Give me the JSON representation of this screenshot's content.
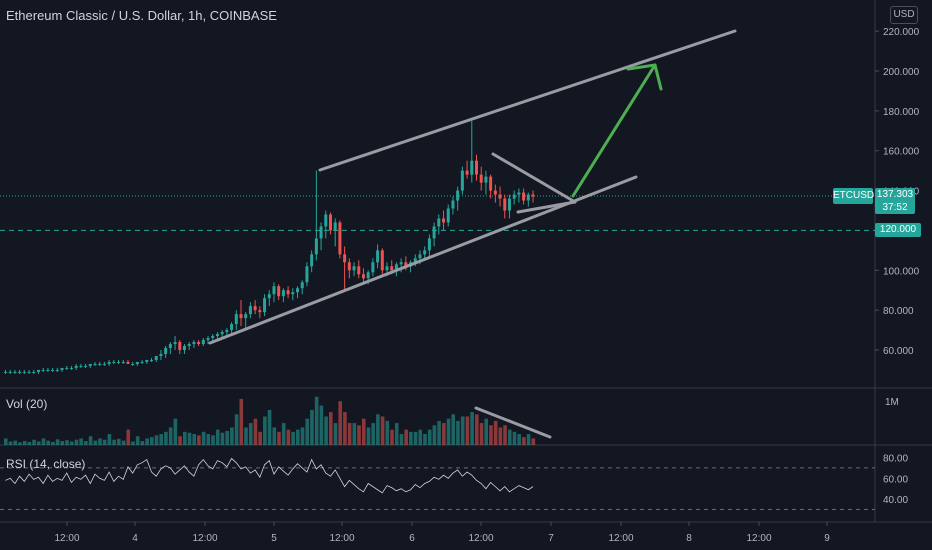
{
  "header": {
    "title": "Ethereum Classic / U.S. Dollar, 1h, COINBASE",
    "currency_badge": "USD"
  },
  "price_axis": {
    "ticks": [
      "220.000",
      "200.000",
      "180.000",
      "160.000",
      "140.000",
      "120.000",
      "100.000",
      "80.000",
      "60.000"
    ],
    "current_symbol": "ETCUSD",
    "current_price": "137.303",
    "countdown": "37:52",
    "level_label": "120.000"
  },
  "volume_pane": {
    "label": "Vol (20)",
    "axis_label": "1M"
  },
  "rsi_pane": {
    "label": "RSI (14, close)",
    "ticks": [
      "80.00",
      "60.00",
      "40.00"
    ]
  },
  "time_axis": {
    "ticks": [
      "12:00",
      "4",
      "12:00",
      "5",
      "12:00",
      "6",
      "12:00",
      "7",
      "12:00",
      "8",
      "12:00",
      "9"
    ]
  },
  "colors": {
    "background": "#131722",
    "up": "#26a69a",
    "down": "#ef5350",
    "channel": "#9a9ca3",
    "arrow": "#4caf50",
    "rsi": "#d1d4dc"
  },
  "chart_data": {
    "type": "candlestick",
    "price_ylim": [
      40,
      225
    ],
    "price_ohlc": [
      [
        49,
        50,
        48,
        49
      ],
      [
        49,
        50,
        48,
        49
      ],
      [
        49,
        50,
        48,
        49
      ],
      [
        49,
        50,
        48,
        49
      ],
      [
        49,
        50,
        48,
        49
      ],
      [
        49,
        50,
        48,
        49
      ],
      [
        49,
        50,
        48,
        49
      ],
      [
        49,
        50,
        48,
        50
      ],
      [
        50,
        51,
        49,
        50
      ],
      [
        50,
        51,
        49,
        50
      ],
      [
        50,
        51,
        49,
        50
      ],
      [
        50,
        51,
        49,
        50
      ],
      [
        50,
        51,
        49,
        51
      ],
      [
        51,
        52,
        50,
        51
      ],
      [
        51,
        52,
        50,
        51
      ],
      [
        51,
        53,
        50,
        52
      ],
      [
        52,
        53,
        51,
        52
      ],
      [
        52,
        53,
        51,
        52
      ],
      [
        52,
        53,
        51,
        53
      ],
      [
        53,
        54,
        52,
        53
      ],
      [
        53,
        54,
        52,
        53
      ],
      [
        53,
        54,
        52,
        53
      ],
      [
        53,
        55,
        52,
        54
      ],
      [
        54,
        55,
        53,
        54
      ],
      [
        54,
        55,
        53,
        54
      ],
      [
        54,
        55,
        53,
        54
      ],
      [
        54,
        55,
        53,
        53
      ],
      [
        53,
        54,
        52,
        53
      ],
      [
        53,
        54,
        52,
        54
      ],
      [
        54,
        55,
        53,
        54
      ],
      [
        54,
        55,
        53,
        55
      ],
      [
        55,
        56,
        54,
        55
      ],
      [
        55,
        57,
        54,
        57
      ],
      [
        57,
        60,
        55,
        58
      ],
      [
        58,
        62,
        56,
        61
      ],
      [
        61,
        64,
        58,
        63
      ],
      [
        63,
        67,
        60,
        64
      ],
      [
        64,
        65,
        58,
        60
      ],
      [
        60,
        63,
        58,
        62
      ],
      [
        62,
        64,
        60,
        63
      ],
      [
        63,
        65,
        61,
        64
      ],
      [
        64,
        65,
        62,
        63
      ],
      [
        63,
        66,
        62,
        65
      ],
      [
        65,
        67,
        63,
        66
      ],
      [
        66,
        68,
        64,
        67
      ],
      [
        67,
        69,
        65,
        68
      ],
      [
        68,
        70,
        66,
        69
      ],
      [
        69,
        71,
        67,
        70
      ],
      [
        70,
        74,
        68,
        73
      ],
      [
        73,
        80,
        70,
        78
      ],
      [
        78,
        85,
        72,
        76
      ],
      [
        76,
        79,
        71,
        78
      ],
      [
        78,
        84,
        76,
        82
      ],
      [
        82,
        85,
        78,
        80
      ],
      [
        80,
        82,
        76,
        79
      ],
      [
        79,
        88,
        77,
        86
      ],
      [
        86,
        90,
        82,
        88
      ],
      [
        88,
        94,
        84,
        92
      ],
      [
        92,
        93,
        85,
        87
      ],
      [
        87,
        91,
        84,
        90
      ],
      [
        90,
        92,
        86,
        88
      ],
      [
        88,
        91,
        85,
        89
      ],
      [
        89,
        92,
        86,
        91
      ],
      [
        91,
        95,
        88,
        94
      ],
      [
        94,
        104,
        92,
        102
      ],
      [
        102,
        110,
        99,
        108
      ],
      [
        108,
        150,
        105,
        116
      ],
      [
        116,
        124,
        110,
        122
      ],
      [
        122,
        130,
        116,
        128
      ],
      [
        128,
        129,
        118,
        120
      ],
      [
        120,
        126,
        112,
        124
      ],
      [
        124,
        125,
        106,
        108
      ],
      [
        108,
        112,
        90,
        104
      ],
      [
        104,
        106,
        96,
        100
      ],
      [
        100,
        104,
        97,
        102
      ],
      [
        102,
        105,
        96,
        98
      ],
      [
        98,
        101,
        94,
        96
      ],
      [
        96,
        100,
        93,
        99
      ],
      [
        99,
        106,
        97,
        104
      ],
      [
        104,
        113,
        101,
        110
      ],
      [
        110,
        111,
        98,
        100
      ],
      [
        100,
        104,
        97,
        102
      ],
      [
        102,
        105,
        98,
        100
      ],
      [
        100,
        104,
        97,
        103
      ],
      [
        103,
        106,
        99,
        104
      ],
      [
        104,
        107,
        100,
        102
      ],
      [
        102,
        105,
        99,
        104
      ],
      [
        104,
        108,
        102,
        106
      ],
      [
        106,
        110,
        103,
        108
      ],
      [
        108,
        112,
        105,
        110
      ],
      [
        110,
        118,
        107,
        116
      ],
      [
        116,
        124,
        112,
        122
      ],
      [
        122,
        128,
        118,
        126
      ],
      [
        126,
        130,
        120,
        124
      ],
      [
        124,
        133,
        122,
        131
      ],
      [
        131,
        137,
        128,
        135
      ],
      [
        135,
        142,
        130,
        140
      ],
      [
        140,
        152,
        138,
        150
      ],
      [
        150,
        155,
        146,
        148
      ],
      [
        148,
        175,
        144,
        155
      ],
      [
        155,
        158,
        145,
        148
      ],
      [
        148,
        152,
        140,
        144
      ],
      [
        144,
        150,
        138,
        147
      ],
      [
        147,
        148,
        136,
        140
      ],
      [
        140,
        143,
        134,
        138
      ],
      [
        138,
        142,
        132,
        136
      ],
      [
        136,
        138,
        126,
        130
      ],
      [
        130,
        138,
        126,
        136
      ],
      [
        136,
        140,
        133,
        138
      ],
      [
        138,
        141,
        134,
        139
      ],
      [
        139,
        141,
        133,
        135
      ],
      [
        135,
        139,
        132,
        138
      ],
      [
        138,
        140,
        134,
        137
      ]
    ],
    "volume_ylim": [
      0,
      1300000
    ],
    "volume": [
      150000,
      80000,
      100000,
      60000,
      90000,
      70000,
      120000,
      80000,
      150000,
      100000,
      70000,
      130000,
      90000,
      110000,
      80000,
      120000,
      150000,
      90000,
      200000,
      100000,
      150000,
      120000,
      250000,
      120000,
      140000,
      100000,
      350000,
      80000,
      200000,
      90000,
      150000,
      180000,
      220000,
      250000,
      300000,
      400000,
      600000,
      200000,
      300000,
      280000,
      250000,
      220000,
      300000,
      250000,
      220000,
      350000,
      280000,
      320000,
      400000,
      700000,
      1050000,
      400000,
      500000,
      600000,
      300000,
      650000,
      800000,
      400000,
      300000,
      500000,
      350000,
      300000,
      350000,
      400000,
      600000,
      800000,
      1100000,
      900000,
      650000,
      750000,
      500000,
      1000000,
      750000,
      500000,
      500000,
      450000,
      600000,
      400000,
      500000,
      700000,
      650000,
      550000,
      350000,
      500000,
      250000,
      350000,
      300000,
      300000,
      350000,
      250000,
      350000,
      450000,
      550000,
      500000,
      600000,
      700000,
      550000,
      650000,
      650000,
      750000,
      700000,
      500000,
      600000,
      450000,
      550000,
      400000,
      450000,
      350000,
      300000,
      250000,
      180000,
      250000,
      150000
    ],
    "rsi_ylim": [
      18,
      92
    ],
    "rsi": [
      58,
      60,
      55,
      62,
      57,
      64,
      59,
      61,
      55,
      63,
      57,
      60,
      58,
      65,
      56,
      61,
      59,
      63,
      55,
      64,
      60,
      58,
      66,
      57,
      62,
      59,
      71,
      65,
      73,
      75,
      78,
      66,
      62,
      69,
      72,
      70,
      64,
      68,
      72,
      66,
      62,
      73,
      78,
      72,
      69,
      77,
      75,
      71,
      79,
      75,
      69,
      71,
      65,
      68,
      61,
      73,
      77,
      64,
      71,
      67,
      63,
      69,
      74,
      70,
      66,
      78,
      69,
      73,
      65,
      62,
      68,
      60,
      52,
      58,
      54,
      50,
      47,
      55,
      52,
      49,
      46,
      53,
      51,
      48,
      50,
      47,
      49,
      54,
      51,
      55,
      57,
      61,
      59,
      63,
      60,
      65,
      68,
      62,
      66,
      63,
      58,
      55,
      50,
      56,
      52,
      48,
      52,
      47,
      50,
      53,
      51,
      49,
      52
    ],
    "channel_upper": [
      [
        320,
        170
      ],
      [
        735,
        31
      ]
    ],
    "channel_lower": [
      [
        210,
        343
      ],
      [
        636,
        177
      ]
    ],
    "pennant_upper": [
      [
        493,
        154
      ],
      [
        575,
        202
      ]
    ],
    "pennant_lower": [
      [
        518,
        212
      ],
      [
        575,
        202
      ]
    ],
    "volume_trend": [
      [
        476,
        408
      ],
      [
        550,
        437
      ]
    ],
    "arrow_from": [
      573,
      196
    ],
    "arrow_to": [
      655,
      65
    ],
    "current_price_line": 137.303,
    "level_line": 120,
    "rsi_bands": [
      70,
      30
    ]
  }
}
